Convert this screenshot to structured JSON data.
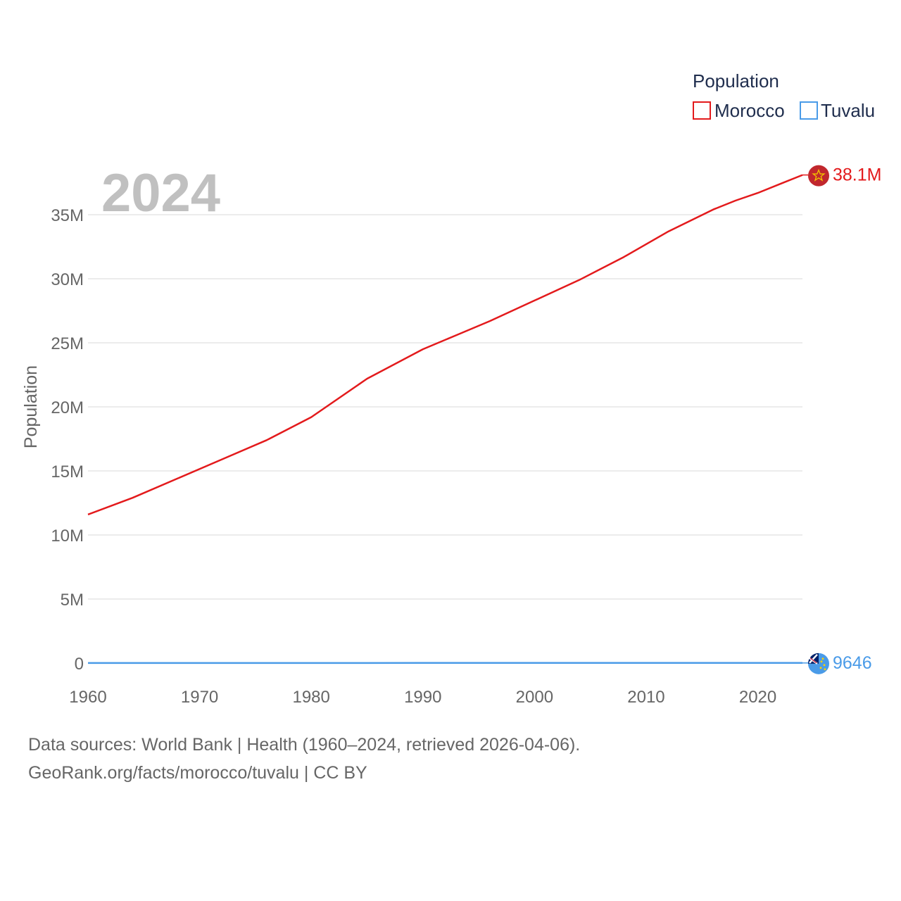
{
  "chart_data": {
    "type": "line",
    "year_watermark": "2024",
    "ylabel": "Population",
    "legend": {
      "title": "Population",
      "placement": "top-right"
    },
    "x": [
      1960,
      1964,
      1968,
      1972,
      1976,
      1980,
      1985,
      1990,
      1993,
      1996,
      2000,
      2004,
      2008,
      2012,
      2016,
      2018,
      2020,
      2022,
      2024
    ],
    "series": [
      {
        "name": "Morocco",
        "color": "#e31a1c",
        "end_label": "38.1M",
        "flag_icon": "morocco-flag-icon",
        "values": [
          11600000,
          12900000,
          14400000,
          15900000,
          17400000,
          19200000,
          22200000,
          24500000,
          25600000,
          26700000,
          28300000,
          29900000,
          31700000,
          33700000,
          35400000,
          36100000,
          36700000,
          37400000,
          38100000
        ]
      },
      {
        "name": "Tuvalu",
        "color": "#4a9be8",
        "end_label": "9646",
        "flag_icon": "tuvalu-flag-icon",
        "values": [
          6100,
          6300,
          6500,
          6800,
          7100,
          7500,
          8000,
          8800,
          9200,
          9400,
          9400,
          9600,
          9800,
          10200,
          10600,
          10800,
          10900,
          9900,
          9646
        ]
      }
    ],
    "xlim": [
      1960,
      2024
    ],
    "ylim": [
      0,
      38100000
    ],
    "x_ticks": [
      {
        "value": 1960,
        "label": "1960"
      },
      {
        "value": 1970,
        "label": "1970"
      },
      {
        "value": 1980,
        "label": "1980"
      },
      {
        "value": 1990,
        "label": "1990"
      },
      {
        "value": 2000,
        "label": "2000"
      },
      {
        "value": 2010,
        "label": "2010"
      },
      {
        "value": 2020,
        "label": "2020"
      }
    ],
    "y_ticks": [
      {
        "value": 0,
        "label": "0"
      },
      {
        "value": 5000000,
        "label": "5M"
      },
      {
        "value": 10000000,
        "label": "10M"
      },
      {
        "value": 15000000,
        "label": "15M"
      },
      {
        "value": 20000000,
        "label": "20M"
      },
      {
        "value": 25000000,
        "label": "25M"
      },
      {
        "value": 30000000,
        "label": "30M"
      },
      {
        "value": 35000000,
        "label": "35M"
      }
    ],
    "grid": true
  },
  "footer": {
    "source_line": "Data sources: World Bank | Health (1960–2024, retrieved 2026-04-06).",
    "credit_line": "GeoRank.org/facts/morocco/tuvalu | CC BY"
  }
}
